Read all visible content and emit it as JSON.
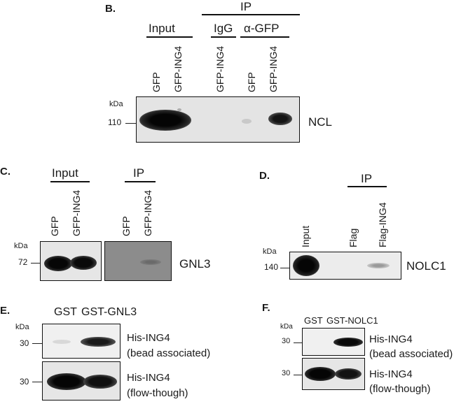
{
  "panelB": {
    "letter": "B.",
    "ip_header": "IP",
    "input_header": "Input",
    "igg_header": "IgG",
    "agfp_header": "α-GFP",
    "lanes": [
      "GFP",
      "GFP-ING4",
      "GFP-ING4",
      "GFP",
      "GFP-ING4"
    ],
    "kda": "kDa",
    "marker": "110",
    "protein": "NCL"
  },
  "panelC": {
    "letter": "C.",
    "input_header": "Input",
    "ip_header": "IP",
    "lanes_input": [
      "GFP",
      "GFP-ING4"
    ],
    "lanes_ip": [
      "GFP",
      "GFP-ING4"
    ],
    "kda": "kDa",
    "marker": "72",
    "protein": "GNL3"
  },
  "panelD": {
    "letter": "D.",
    "ip_header": "IP",
    "lanes": [
      "Input",
      "Flag",
      "Flag-ING4"
    ],
    "kda": "kDa",
    "marker": "140",
    "protein": "NOLC1"
  },
  "panelE": {
    "letter": "E.",
    "lanes": [
      "GST",
      "GST-GNL3"
    ],
    "kda": "kDa",
    "marker_top": "30",
    "marker_bottom": "30",
    "label_top_1": "His-ING4",
    "label_top_2": "(bead associated)",
    "label_bottom_1": "His-ING4",
    "label_bottom_2": "(flow-though)"
  },
  "panelF": {
    "letter": "F.",
    "lanes": [
      "GST",
      "GST-NOLC1"
    ],
    "kda": "kDa",
    "marker_top": "30",
    "marker_bottom": "30",
    "label_top_1": "His-ING4",
    "label_top_2": "(bead associated)",
    "label_bottom_1": "His-ING4",
    "label_bottom_2": "(flow-though)"
  }
}
